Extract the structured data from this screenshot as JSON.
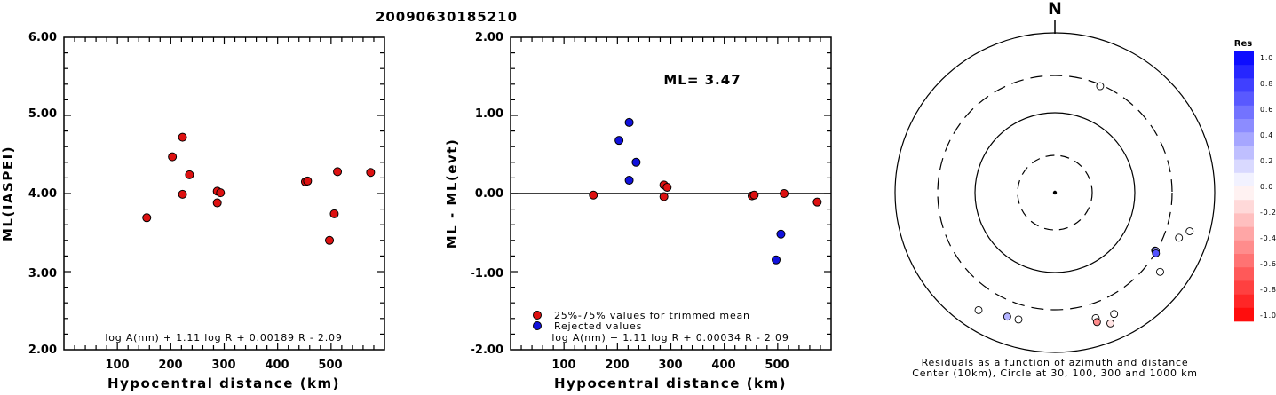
{
  "page_title": "20090630185210",
  "colors": {
    "accepted": "#dd1111",
    "rejected": "#1111dd"
  },
  "left_panel": {
    "ylabel": "ML(IASPEI)",
    "xlabel": "Hypocentral distance (km)",
    "formula": "log A(nm) + 1.11 log R + 0.00189 R - 2.09",
    "y_ticks": [
      "6.00",
      "5.00",
      "4.00",
      "3.00",
      "2.00"
    ],
    "x_ticks": [
      "100",
      "200",
      "300",
      "400",
      "500"
    ]
  },
  "middle_panel": {
    "ylabel": "ML - ML(evt)",
    "xlabel": "Hypocentral distance (km)",
    "formula": "log A(nm) + 1.11 log R + 0.00034 R - 2.09",
    "ml_label": "ML= 3.47",
    "legend": [
      "25%-75% values for trimmed mean",
      "Rejected values"
    ],
    "y_ticks": [
      "2.00",
      "1.00",
      "0.00",
      "-1.00",
      "-2.00"
    ],
    "x_ticks": [
      "100",
      "200",
      "300",
      "400",
      "500"
    ]
  },
  "right_panel": {
    "north_label": "N",
    "caption_line1": "Residuals as a function of azimuth and distance",
    "caption_line2": "Center (10km), Circle at 30, 100, 300 and 1000 km",
    "colorbar_title": "Res",
    "colorbar_ticks": [
      "1.0",
      "0.8",
      "0.6",
      "0.4",
      "0.2",
      "0.0",
      "-0.2",
      "-0.4",
      "-0.6",
      "-0.8",
      "-1.0"
    ]
  },
  "chart_data": [
    {
      "type": "scatter",
      "title": "20090630185210",
      "xlabel": "Hypocentral distance (km)",
      "ylabel": "ML(IASPEI)",
      "xlim": [
        0,
        600
      ],
      "ylim": [
        2,
        6
      ],
      "grid": false,
      "series": [
        {
          "name": "",
          "points": [
            [
              155,
              3.69
            ],
            [
              203,
              4.47
            ],
            [
              222,
              4.72
            ],
            [
              222,
              3.99
            ],
            [
              235,
              4.24
            ],
            [
              287,
              4.03
            ],
            [
              287,
              3.88
            ],
            [
              293,
              4.01
            ],
            [
              452,
              4.15
            ],
            [
              456,
              4.16
            ],
            [
              497,
              3.4
            ],
            [
              506,
              3.74
            ],
            [
              512,
              4.28
            ],
            [
              574,
              4.27
            ]
          ]
        }
      ]
    },
    {
      "type": "scatter",
      "xlabel": "Hypocentral distance (km)",
      "ylabel": "ML - ML(evt)",
      "xlim": [
        0,
        600
      ],
      "ylim": [
        -2,
        2
      ],
      "grid": false,
      "reference_line_y": 0,
      "legend_position": "bottom-left",
      "series": [
        {
          "name": "25%-75% values for trimmed mean",
          "points": [
            [
              155,
              -0.02
            ],
            [
              287,
              0.11
            ],
            [
              287,
              -0.04
            ],
            [
              293,
              0.08
            ],
            [
              452,
              -0.03
            ],
            [
              456,
              -0.02
            ],
            [
              512,
              0.0
            ],
            [
              574,
              -0.11
            ]
          ]
        },
        {
          "name": "Rejected values",
          "points": [
            [
              203,
              0.68
            ],
            [
              222,
              0.91
            ],
            [
              222,
              0.17
            ],
            [
              235,
              0.4
            ],
            [
              497,
              -0.85
            ],
            [
              506,
              -0.52
            ]
          ]
        }
      ]
    },
    {
      "type": "scatter",
      "subtype": "polar-residual-map",
      "rings_km": [
        30,
        100,
        300,
        1000
      ],
      "colorbar_range": [
        -1.0,
        1.0
      ],
      "stations": [
        {
          "azimuth": 23,
          "distance_km": 287,
          "residual": 0.0
        },
        {
          "azimuth": 106,
          "distance_km": 574,
          "residual": 0.0
        },
        {
          "azimuth": 127,
          "distance_km": 452,
          "residual": 0.0
        },
        {
          "azimuth": 110,
          "distance_km": 456,
          "residual": 0.0
        },
        {
          "azimuth": 120,
          "distance_km": 287,
          "residual": 0.08
        },
        {
          "azimuth": 120,
          "distance_km": 293,
          "residual": 0.4
        },
        {
          "azimuth": 121,
          "distance_km": 306,
          "residual": 0.68
        },
        {
          "azimuth": 154,
          "distance_km": 497,
          "residual": 0.0
        },
        {
          "azimuth": 162,
          "distance_km": 456,
          "residual": 0.0
        },
        {
          "azimuth": 157,
          "distance_km": 606,
          "residual": -0.11
        },
        {
          "azimuth": 162,
          "distance_km": 512,
          "residual": -0.45
        },
        {
          "azimuth": 196,
          "distance_km": 456,
          "residual": 0.0
        },
        {
          "azimuth": 201,
          "distance_km": 467,
          "residual": 0.3
        },
        {
          "azimuth": 213,
          "distance_km": 574,
          "residual": 0.0
        }
      ]
    }
  ]
}
